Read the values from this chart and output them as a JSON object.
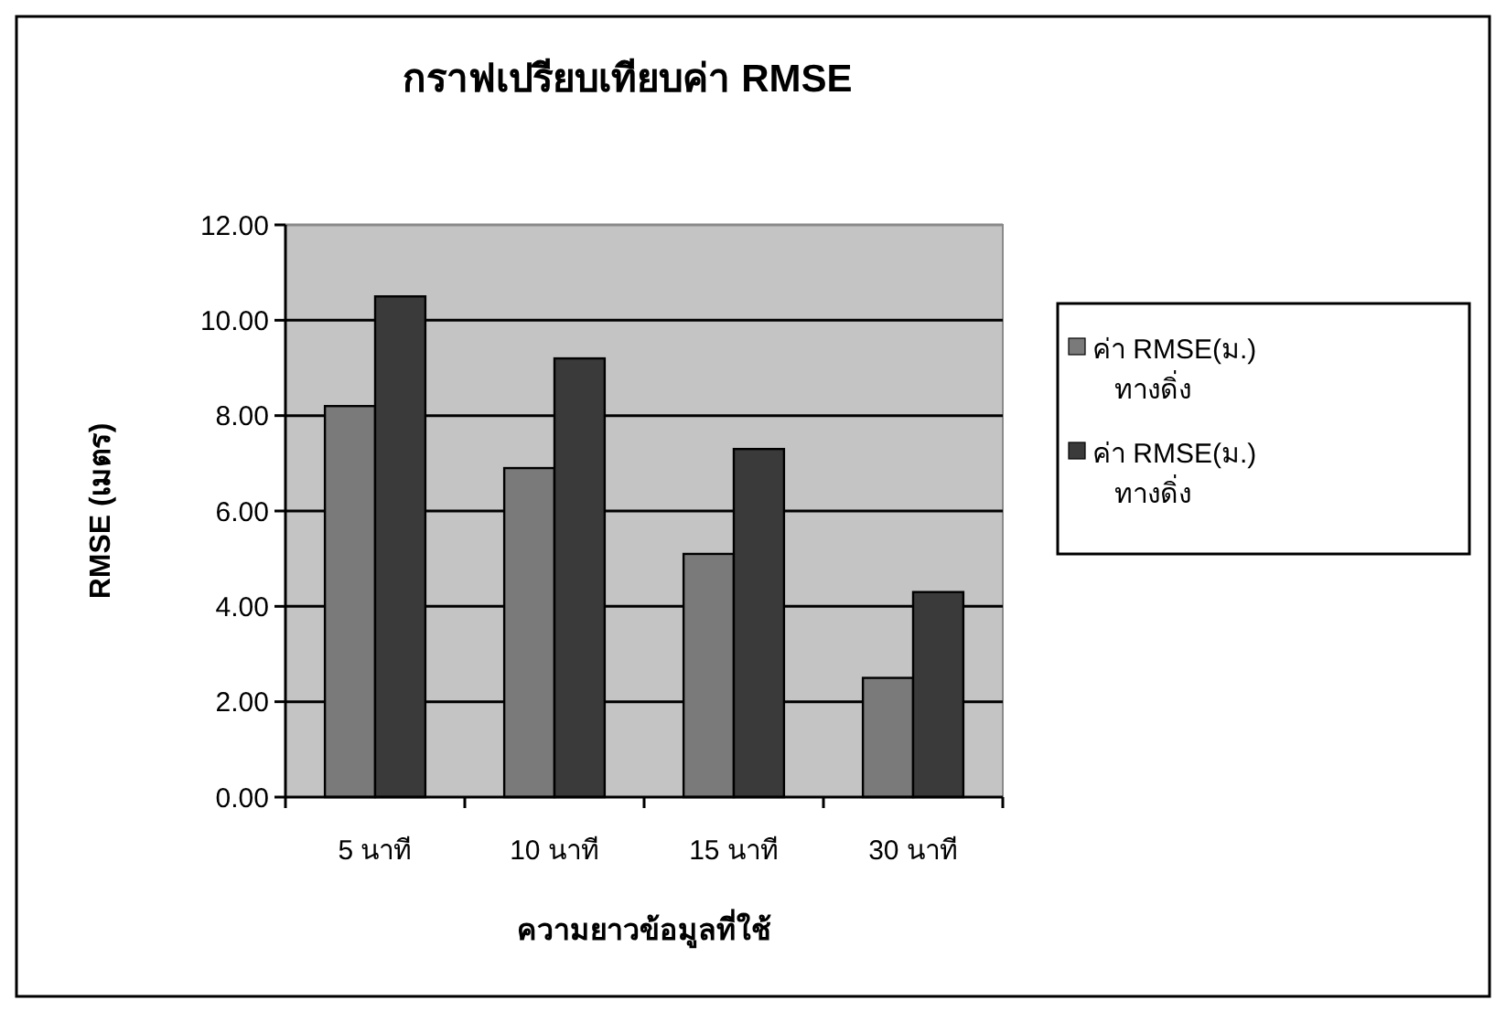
{
  "chart_data": {
    "type": "bar",
    "title": "กราฟเปรียบเทียบค่า RMSE",
    "xlabel": "ความยาวข้อมูลที่ใช้",
    "ylabel": "RMSE (เมตร)",
    "categories": [
      "5 นาที",
      "10 นาที",
      "15 นาที",
      "30 นาที"
    ],
    "series": [
      {
        "name": "ค่า RMSE(ม.) ทางดิ่ง",
        "color": "#7a7a7a",
        "values": [
          8.2,
          6.9,
          5.1,
          2.5
        ]
      },
      {
        "name": "ค่า RMSE(ม.) ทางดิ่ง",
        "color": "#3a3a3a",
        "values": [
          10.5,
          9.2,
          7.3,
          4.3
        ]
      }
    ],
    "ylim": [
      0,
      12
    ],
    "yticks": [
      {
        "value": 0,
        "label": "0.00"
      },
      {
        "value": 2,
        "label": "2.00"
      },
      {
        "value": 4,
        "label": "4.00"
      },
      {
        "value": 6,
        "label": "6.00"
      },
      {
        "value": 8,
        "label": "8.00"
      },
      {
        "value": 10,
        "label": "10.00"
      },
      {
        "value": 12,
        "label": "12.00"
      }
    ],
    "grid": "y",
    "legend": "right"
  }
}
